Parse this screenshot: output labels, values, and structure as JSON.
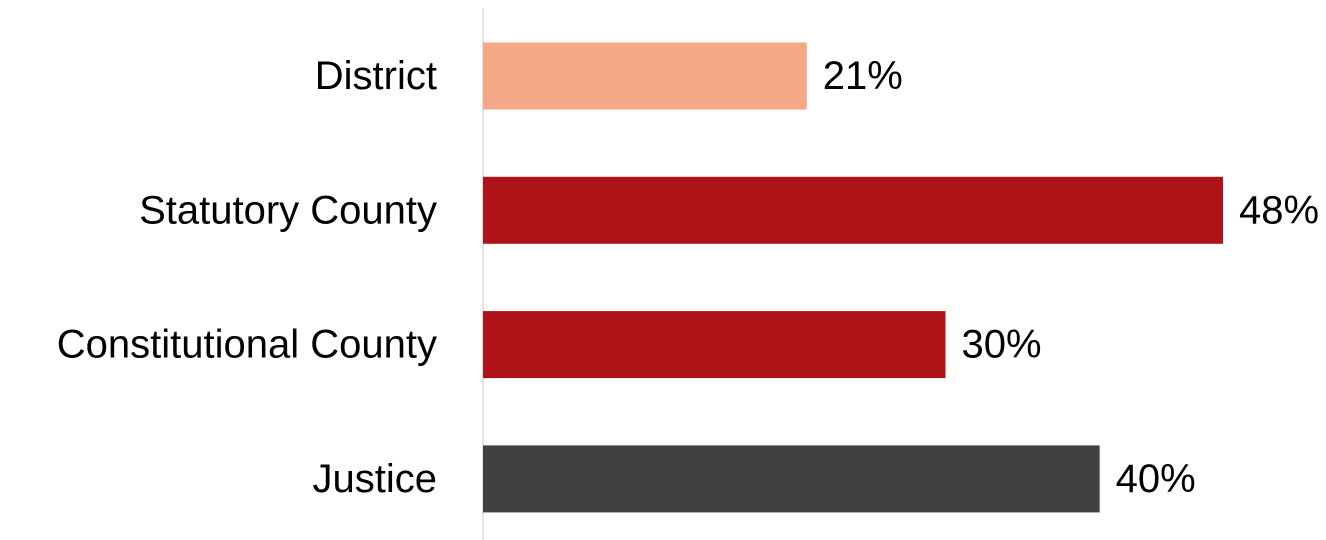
{
  "chart_data": {
    "type": "bar",
    "orientation": "horizontal",
    "title": "",
    "xlabel": "",
    "ylabel": "",
    "categories": [
      "District",
      "Statutory County",
      "Constitutional County",
      "Justice"
    ],
    "values": [
      21,
      48,
      30,
      40
    ],
    "value_labels": [
      "21%",
      "48%",
      "30%",
      "40%"
    ],
    "colors": [
      "#F4A886",
      "#AE1417",
      "#AE1417",
      "#404040"
    ],
    "xlim": [
      0,
      48
    ],
    "grid": false,
    "legend": "none",
    "axis_line_color": "#D9D9D9"
  }
}
